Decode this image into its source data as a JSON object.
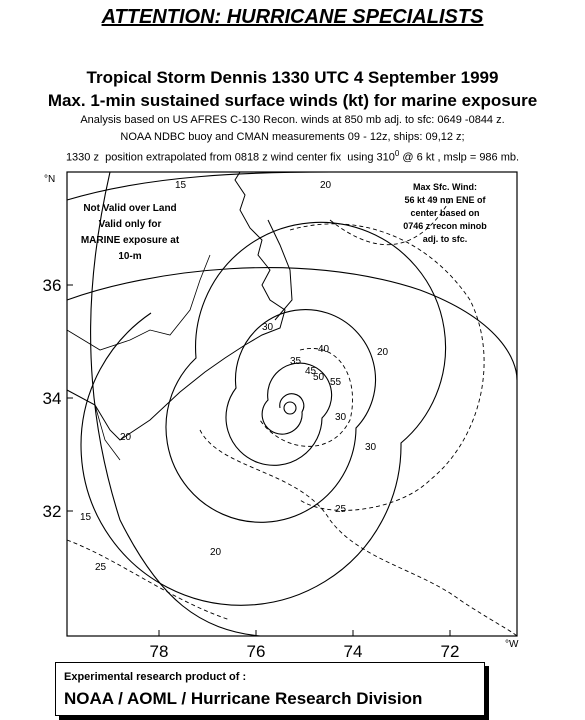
{
  "header": {
    "title": "ATTENTION: HURRICANE SPECIALISTS",
    "subtitle": "Tropical Storm Dennis 1330 UTC 4 September 1999",
    "subtitle2": "Max. 1-min sustained surface winds (kt) for marine exposure",
    "notes": [
      "Analysis based on US AFRES C-130 Recon. winds at 850 mb adj. to sfc: 0649 -0844 z.",
      "NOAA NDBC buoy and CMAN measurements 09 - 12z, ships: 09,12 z;"
    ],
    "note3": [
      "1330 z  position extrapolated from 0818 z wind center fix  using 310",
      "0",
      " @ 6 kt , mslp = 986 mb."
    ]
  },
  "map": {
    "lat_labels": [
      36,
      34,
      32
    ],
    "lon_labels": [
      78,
      76,
      74,
      72
    ],
    "north_unit": "°N",
    "west_unit": "°W",
    "land_note": [
      "Not Valid over Land",
      "Valid only for",
      "MARINE exposure at",
      "10-m"
    ],
    "max_wind_note": [
      "Max Sfc. Wind:",
      "56 kt  49 nm ENE of",
      "center based on",
      "0746 z recon minob",
      "adj. to sfc."
    ],
    "contour_labels": [
      "15",
      "20",
      "20",
      "30",
      "35",
      "40",
      "45",
      "50",
      "55",
      "30",
      "30",
      "25",
      "20",
      "15",
      "20",
      "25"
    ]
  },
  "footer": {
    "line1": "Experimental research product of :",
    "line2": "NOAA / AOML / Hurricane Research Division"
  }
}
